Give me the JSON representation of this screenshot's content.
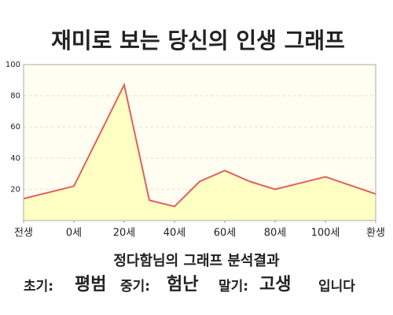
{
  "chart_data": {
    "type": "line",
    "title": "재미로 보는 당신의 인생 그래프",
    "x": [
      -20,
      0,
      20,
      30,
      40,
      50,
      60,
      70,
      80,
      100,
      120
    ],
    "series": [
      {
        "color": "#e06060",
        "values": [
          14,
          22,
          87,
          13,
          9,
          25,
          32,
          25,
          20,
          28,
          17
        ]
      }
    ],
    "xlim": [
      -20,
      120
    ],
    "xticks": [
      {
        "value": -20,
        "label": "전생"
      },
      {
        "value": 0,
        "label": "0세"
      },
      {
        "value": 20,
        "label": "20세"
      },
      {
        "value": 40,
        "label": "40세"
      },
      {
        "value": 60,
        "label": "60세"
      },
      {
        "value": 80,
        "label": "80세"
      },
      {
        "value": 100,
        "label": "100세"
      },
      {
        "value": 120,
        "label": "환생"
      }
    ],
    "ylim": [
      0,
      100
    ],
    "yticks": [
      20,
      40,
      60,
      80,
      100
    ],
    "grid": true,
    "fill": "#ffffc4"
  },
  "result": {
    "heading": "정다함님의 그래프 분석결과",
    "items": [
      {
        "label": "초기:",
        "value": "평범"
      },
      {
        "label": "중기:",
        "value": "험난"
      },
      {
        "label": "말기:",
        "value": "고생"
      }
    ],
    "ending": "입니다"
  }
}
